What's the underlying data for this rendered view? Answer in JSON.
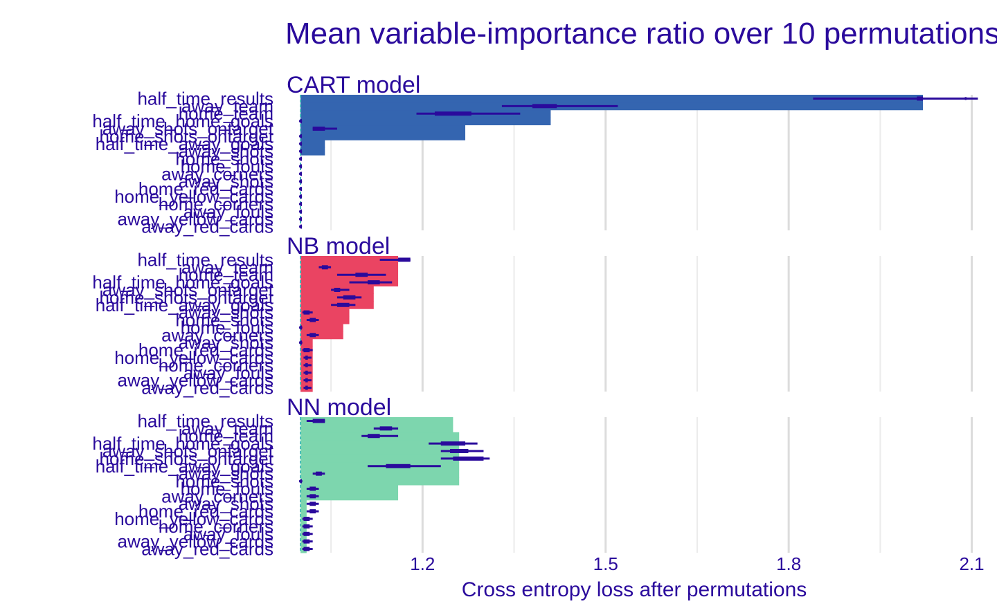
{
  "chart_data": {
    "type": "bar",
    "title": "Mean variable-importance ratio over 10 permutations",
    "xlabel": "Cross entropy loss after permutations",
    "ylabel": "",
    "xlim": [
      0.975,
      2.13
    ],
    "x_ticks": [
      1.2,
      1.5,
      1.8,
      2.1
    ],
    "x_tick_labels": [
      "1.2",
      "1.5",
      "1.8",
      "2.1"
    ],
    "baseline": 1.0,
    "grid": true,
    "legend": "none",
    "features": [
      "half_time_results",
      "away_team",
      "home_team",
      "half_time_home_goals",
      "away_shots_ontarget",
      "home_shots_ontarget",
      "half_time_away_goals",
      "away_shots",
      "home_shots",
      "home_fouls",
      "away_corners",
      "away_shots",
      "home_red_cards",
      "home_yellow_cards",
      "home_corners",
      "away_fouls",
      "away_yellow_cards",
      "away_red_cards"
    ],
    "panels": [
      {
        "label": "CART model",
        "color": "#3465b0",
        "bar_ends": [
          2.02,
          2.02,
          1.41,
          1.41,
          1.27,
          1.27,
          1.04,
          1.04,
          1.0,
          1.0,
          1.0,
          1.0,
          1.0,
          1.0,
          1.0,
          1.0,
          1.0,
          1.0
        ],
        "mean": [
          2.09,
          1.4,
          1.25,
          1.0,
          1.03,
          1.0,
          1.0,
          1.0,
          1.0,
          1.0,
          1.0,
          1.0,
          1.0,
          1.0,
          1.0,
          1.0,
          1.0,
          1.0
        ],
        "q_low": [
          2.01,
          1.38,
          1.22,
          1.0,
          1.02,
          1.0,
          1.0,
          1.0,
          1.0,
          1.0,
          1.0,
          1.0,
          1.0,
          1.0,
          1.0,
          1.0,
          1.0,
          1.0
        ],
        "q_high": [
          2.02,
          1.42,
          1.28,
          1.0,
          1.04,
          1.0,
          1.0,
          1.0,
          1.0,
          1.0,
          1.0,
          1.0,
          1.0,
          1.0,
          1.0,
          1.0,
          1.0,
          1.0
        ],
        "min": [
          1.84,
          1.33,
          1.19,
          1.0,
          1.02,
          1.0,
          1.0,
          1.0,
          1.0,
          1.0,
          1.0,
          1.0,
          1.0,
          1.0,
          1.0,
          1.0,
          1.0,
          1.0
        ],
        "max": [
          2.11,
          1.52,
          1.36,
          1.0,
          1.06,
          1.0,
          1.0,
          1.0,
          1.0,
          1.0,
          1.0,
          1.0,
          1.0,
          1.0,
          1.0,
          1.0,
          1.0,
          1.0
        ]
      },
      {
        "label": "NB model",
        "color": "#ea4462",
        "bar_ends": [
          1.16,
          1.16,
          1.16,
          1.16,
          1.12,
          1.12,
          1.12,
          1.08,
          1.08,
          1.07,
          1.07,
          1.02,
          1.02,
          1.02,
          1.02,
          1.02,
          1.02,
          1.02
        ],
        "mean": [
          1.17,
          1.04,
          1.1,
          1.12,
          1.06,
          1.08,
          1.07,
          1.01,
          1.02,
          1.0,
          1.02,
          1.0,
          1.01,
          1.01,
          1.01,
          1.01,
          1.01,
          1.01
        ],
        "q_low": [
          1.16,
          1.035,
          1.09,
          1.11,
          1.055,
          1.07,
          1.06,
          1.005,
          1.015,
          1.0,
          1.015,
          1.0,
          1.005,
          1.008,
          1.008,
          1.008,
          1.008,
          1.008
        ],
        "q_high": [
          1.18,
          1.045,
          1.11,
          1.13,
          1.065,
          1.09,
          1.08,
          1.015,
          1.025,
          1.0,
          1.025,
          1.0,
          1.015,
          1.012,
          1.012,
          1.012,
          1.012,
          1.012
        ],
        "min": [
          1.13,
          1.03,
          1.06,
          1.08,
          1.05,
          1.06,
          1.05,
          1.003,
          1.01,
          0.998,
          1.01,
          0.998,
          1.003,
          1.005,
          1.005,
          1.005,
          1.005,
          1.005
        ],
        "max": [
          1.18,
          1.05,
          1.14,
          1.15,
          1.08,
          1.1,
          1.09,
          1.02,
          1.03,
          1.003,
          1.03,
          1.003,
          1.02,
          1.018,
          1.018,
          1.018,
          1.018,
          1.018
        ]
      },
      {
        "label": "NN model",
        "color": "#7dd6ae",
        "bar_ends": [
          1.25,
          1.25,
          1.26,
          1.26,
          1.26,
          1.26,
          1.26,
          1.26,
          1.26,
          1.16,
          1.16,
          1.01,
          1.01,
          1.01,
          1.01,
          1.01,
          1.01,
          1.01
        ],
        "mean": [
          1.03,
          1.14,
          1.12,
          1.25,
          1.26,
          1.27,
          1.16,
          1.03,
          1.0,
          1.02,
          1.02,
          1.02,
          1.02,
          1.01,
          1.01,
          1.01,
          1.01,
          1.01
        ],
        "q_low": [
          1.02,
          1.13,
          1.11,
          1.23,
          1.245,
          1.25,
          1.14,
          1.025,
          1.0,
          1.015,
          1.015,
          1.015,
          1.015,
          1.005,
          1.005,
          1.005,
          1.005,
          1.005
        ],
        "q_high": [
          1.04,
          1.15,
          1.13,
          1.27,
          1.275,
          1.3,
          1.18,
          1.035,
          1.0,
          1.025,
          1.025,
          1.025,
          1.025,
          1.015,
          1.015,
          1.015,
          1.015,
          1.015
        ],
        "min": [
          1.01,
          1.12,
          1.1,
          1.21,
          1.23,
          1.23,
          1.11,
          1.02,
          0.998,
          1.01,
          1.01,
          1.01,
          1.01,
          1.003,
          1.003,
          1.003,
          1.003,
          1.003
        ],
        "max": [
          1.04,
          1.16,
          1.16,
          1.29,
          1.3,
          1.31,
          1.23,
          1.04,
          1.003,
          1.03,
          1.03,
          1.03,
          1.03,
          1.02,
          1.02,
          1.02,
          1.02,
          1.02
        ]
      }
    ]
  },
  "colors": {
    "text": "#2a0a9c",
    "boxplot": "#2a0a9c",
    "baseline": "#46bdb8"
  }
}
